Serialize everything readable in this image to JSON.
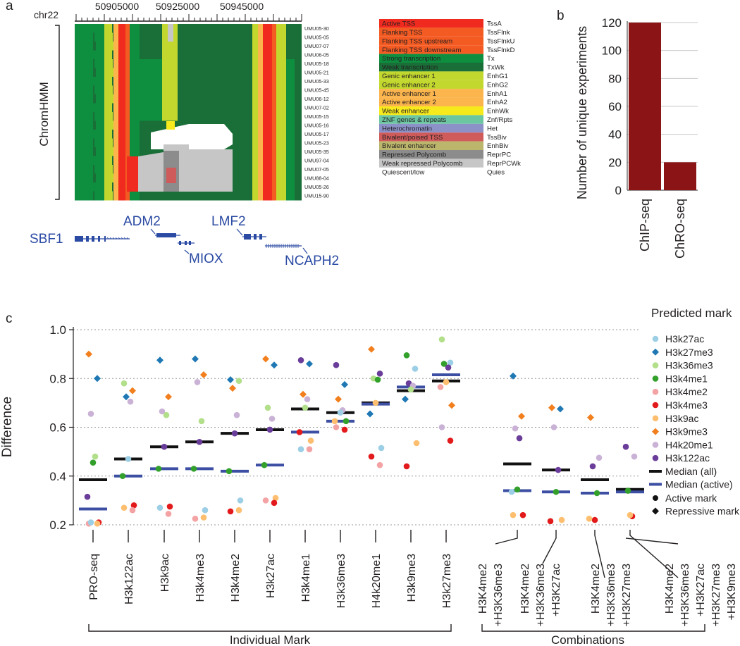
{
  "panel_labels": {
    "a": "a",
    "b": "b",
    "c": "c"
  },
  "panel_a": {
    "chrom_label": "chr22",
    "ticks": [
      "50905000",
      "50925000",
      "50945000"
    ],
    "ylabel": "ChromHMM",
    "samples": [
      "UMU05-30",
      "UMU05-05",
      "UMU07-07",
      "UMU06-05",
      "UMU05-18",
      "UMU05-21",
      "UMU05-33",
      "UMU05-45",
      "UMU06-12",
      "UMU07-02",
      "UMU05-15",
      "UMU05-16",
      "UMU05-17",
      "UMU05-23",
      "UMU05-35",
      "UMU97-04",
      "UMU07-05",
      "UMU88-04",
      "UMU05-26",
      "UMU15-90"
    ],
    "legend": [
      {
        "name": "Active TSS",
        "code": "TssA",
        "color": "#f02a1e"
      },
      {
        "name": "Flanking TSS",
        "code": "TssFlnk",
        "color": "#f45b23"
      },
      {
        "name": "Flanking TSS upstream",
        "code": "TssFlnkU",
        "color": "#f45b23"
      },
      {
        "name": "Flanking TSS downstream",
        "code": "TssFlnkD",
        "color": "#f45b23"
      },
      {
        "name": "Strong transcription",
        "code": "Tx",
        "color": "#0e8e3f"
      },
      {
        "name": "Weak transcription",
        "code": "TxWk",
        "color": "#1a6e37"
      },
      {
        "name": "Genic enhancer 1",
        "code": "EnhG1",
        "color": "#c3d82e"
      },
      {
        "name": "Genic enhancer 2",
        "code": "EnhG2",
        "color": "#c3d82e"
      },
      {
        "name": "Active enhancer 1",
        "code": "EnhA1",
        "color": "#fbb54c"
      },
      {
        "name": "Active enhancer 2",
        "code": "EnhA2",
        "color": "#fbb54c"
      },
      {
        "name": "Weak enhancer",
        "code": "EnhWk",
        "color": "#f6ea1d"
      },
      {
        "name": "ZNF genes & repeats",
        "code": "Znf/Rpts",
        "color": "#6cc6a2"
      },
      {
        "name": "Heterochromatin",
        "code": "Het",
        "color": "#8c91c8"
      },
      {
        "name": "Bivalent/poised TSS",
        "code": "TssBiv",
        "color": "#cf5b5b"
      },
      {
        "name": "Bivalent enhancer",
        "code": "EnhBiv",
        "color": "#bcb66c"
      },
      {
        "name": "Repressed Polycomb",
        "code": "ReprPC",
        "color": "#8c8c8c"
      },
      {
        "name": "Weak repressed Polycomb",
        "code": "ReprPCWk",
        "color": "#c6c6c6"
      },
      {
        "name": "Quiescent/low",
        "code": "Quies",
        "color": "#ffffff"
      }
    ],
    "genes": [
      "SBF1",
      "ADM2",
      "MIOX",
      "LMF2",
      "NCAPH2"
    ]
  },
  "chart_data": [
    {
      "type": "bar",
      "panel": "b",
      "categories": [
        "ChIP-seq",
        "ChRO-seq"
      ],
      "values": [
        120,
        20
      ],
      "ylabel": "Number of unique experiments",
      "ylim": [
        0,
        120
      ],
      "yticks": [
        "0",
        "20",
        "40",
        "60",
        "80",
        "100",
        "120"
      ],
      "color": "#8b1516",
      "grid": true
    },
    {
      "type": "scatter",
      "panel": "c",
      "ylabel": "Difference",
      "ylim": [
        0.2,
        1.0
      ],
      "yticks": [
        "0.2",
        "0.4",
        "0.6",
        "0.8",
        "1.0"
      ],
      "grid": true,
      "legend_title": "Predicted  mark",
      "legend_position": "right",
      "categories": [
        "PRO-seq",
        "H3k122ac",
        "H3k9ac",
        "H3k4me3",
        "H3k4me2",
        "H3k27ac",
        "H3k4me1",
        "H3k36me3",
        "H4k20me1",
        "H3k9me3",
        "H3k27me3",
        "H3K4me2\n+H3K36me3",
        "H3K4me2\n+H3K36me3\n+H3K27ac",
        "H3K4me2\n+H3K36me3\n+H3K27me3",
        "H3K4me2\n+H3K36me3\n+H3K27ac\n+H3K27me3\n+H3K9me3"
      ],
      "group_labels": [
        "Individual Mark",
        "Combinations"
      ],
      "marks": [
        {
          "name": "H3k27ac",
          "color": "#9ccfe5",
          "shape": "circle"
        },
        {
          "name": "H3k27me3",
          "color": "#1f78b4",
          "shape": "diamond"
        },
        {
          "name": "H3k36me3",
          "color": "#b2df8a",
          "shape": "circle"
        },
        {
          "name": "H3k4me1",
          "color": "#33a02c",
          "shape": "circle"
        },
        {
          "name": "H3k4me2",
          "color": "#f4a3a5",
          "shape": "circle"
        },
        {
          "name": "H3k4me3",
          "color": "#e31a1c",
          "shape": "circle"
        },
        {
          "name": "H3k9ac",
          "color": "#fdbf6f",
          "shape": "circle"
        },
        {
          "name": "H3k9me3",
          "color": "#f27f1e",
          "shape": "diamond"
        },
        {
          "name": "H4k20me1",
          "color": "#cab2d6",
          "shape": "circle"
        },
        {
          "name": "H3k122ac",
          "color": "#6a3d9a",
          "shape": "circle"
        }
      ],
      "median_legend": [
        {
          "name": "Median (all)",
          "color": "#111111"
        },
        {
          "name": "Median (active)",
          "color": "#3c4fa3"
        }
      ],
      "shape_legend": [
        {
          "name": "Active mark",
          "shape": "circle"
        },
        {
          "name": "Repressive mark",
          "shape": "diamond"
        }
      ],
      "median_all": [
        0.385,
        0.47,
        0.52,
        0.54,
        0.575,
        0.59,
        0.675,
        0.66,
        0.7,
        0.75,
        0.79,
        0.45,
        0.425,
        0.385,
        0.345
      ],
      "median_active": [
        0.265,
        0.4,
        0.43,
        0.43,
        0.42,
        0.445,
        0.58,
        0.625,
        0.695,
        0.765,
        0.815,
        0.34,
        0.335,
        0.33,
        0.335
      ],
      "points": [
        {
          "cat": 0,
          "mark": "H3k9me3",
          "y": 0.9
        },
        {
          "cat": 0,
          "mark": "H3k27me3",
          "y": 0.8
        },
        {
          "cat": 0,
          "mark": "H4k20me1",
          "y": 0.655
        },
        {
          "cat": 0,
          "mark": "H3k36me3",
          "y": 0.48
        },
        {
          "cat": 0,
          "mark": "H3k4me1",
          "y": 0.455
        },
        {
          "cat": 0,
          "mark": "H3k122ac",
          "y": 0.315
        },
        {
          "cat": 0,
          "mark": "H3k4me3",
          "y": 0.21
        },
        {
          "cat": 0,
          "mark": "H3k4me2",
          "y": 0.205
        },
        {
          "cat": 0,
          "mark": "H3k9ac",
          "y": 0.205
        },
        {
          "cat": 0,
          "mark": "H3k27ac",
          "y": 0.21
        },
        {
          "cat": 1,
          "mark": "H3k36me3",
          "y": 0.78
        },
        {
          "cat": 1,
          "mark": "H3k9me3",
          "y": 0.75
        },
        {
          "cat": 1,
          "mark": "H3k27me3",
          "y": 0.725
        },
        {
          "cat": 1,
          "mark": "H4k20me1",
          "y": 0.705
        },
        {
          "cat": 1,
          "mark": "H3k27ac",
          "y": 0.47
        },
        {
          "cat": 1,
          "mark": "H3k4me1",
          "y": 0.4
        },
        {
          "cat": 1,
          "mark": "H3k4me3",
          "y": 0.28
        },
        {
          "cat": 1,
          "mark": "H3k9ac",
          "y": 0.27
        },
        {
          "cat": 1,
          "mark": "H3k4me2",
          "y": 0.26
        },
        {
          "cat": 2,
          "mark": "H3k27me3",
          "y": 0.875
        },
        {
          "cat": 2,
          "mark": "H3k9me3",
          "y": 0.725
        },
        {
          "cat": 2,
          "mark": "H4k20me1",
          "y": 0.665
        },
        {
          "cat": 2,
          "mark": "H3k36me3",
          "y": 0.65
        },
        {
          "cat": 2,
          "mark": "H3k122ac",
          "y": 0.52
        },
        {
          "cat": 2,
          "mark": "H3k4me1",
          "y": 0.43
        },
        {
          "cat": 2,
          "mark": "H3k4me3",
          "y": 0.275
        },
        {
          "cat": 2,
          "mark": "H3k27ac",
          "y": 0.27
        },
        {
          "cat": 2,
          "mark": "H3k4me2",
          "y": 0.245
        },
        {
          "cat": 3,
          "mark": "H3k27me3",
          "y": 0.88
        },
        {
          "cat": 3,
          "mark": "H3k9me3",
          "y": 0.815
        },
        {
          "cat": 3,
          "mark": "H4k20me1",
          "y": 0.785
        },
        {
          "cat": 3,
          "mark": "H3k36me3",
          "y": 0.625
        },
        {
          "cat": 3,
          "mark": "H3k122ac",
          "y": 0.54
        },
        {
          "cat": 3,
          "mark": "H3k4me1",
          "y": 0.43
        },
        {
          "cat": 3,
          "mark": "H3k27ac",
          "y": 0.26
        },
        {
          "cat": 3,
          "mark": "H3k4me2",
          "y": 0.225
        },
        {
          "cat": 3,
          "mark": "H3k9ac",
          "y": 0.23
        },
        {
          "cat": 4,
          "mark": "H3k27me3",
          "y": 0.795
        },
        {
          "cat": 4,
          "mark": "H3k36me3",
          "y": 0.79
        },
        {
          "cat": 4,
          "mark": "H3k9me3",
          "y": 0.76
        },
        {
          "cat": 4,
          "mark": "H4k20me1",
          "y": 0.65
        },
        {
          "cat": 4,
          "mark": "H3k122ac",
          "y": 0.575
        },
        {
          "cat": 4,
          "mark": "H3k4me1",
          "y": 0.42
        },
        {
          "cat": 4,
          "mark": "H3k27ac",
          "y": 0.3
        },
        {
          "cat": 4,
          "mark": "H3k4me3",
          "y": 0.255
        },
        {
          "cat": 4,
          "mark": "H3k9ac",
          "y": 0.26
        },
        {
          "cat": 5,
          "mark": "H3k9me3",
          "y": 0.88
        },
        {
          "cat": 5,
          "mark": "H3k27me3",
          "y": 0.855
        },
        {
          "cat": 5,
          "mark": "H3k36me3",
          "y": 0.68
        },
        {
          "cat": 5,
          "mark": "H4k20me1",
          "y": 0.635
        },
        {
          "cat": 5,
          "mark": "H3k122ac",
          "y": 0.59
        },
        {
          "cat": 5,
          "mark": "H3k4me1",
          "y": 0.445
        },
        {
          "cat": 5,
          "mark": "H3k9ac",
          "y": 0.31
        },
        {
          "cat": 5,
          "mark": "H3k4me2",
          "y": 0.3
        },
        {
          "cat": 5,
          "mark": "H3k4me3",
          "y": 0.29
        },
        {
          "cat": 6,
          "mark": "H3k122ac",
          "y": 0.875
        },
        {
          "cat": 6,
          "mark": "H3k27me3",
          "y": 0.86
        },
        {
          "cat": 6,
          "mark": "H3k9me3",
          "y": 0.735
        },
        {
          "cat": 6,
          "mark": "H4k20me1",
          "y": 0.715
        },
        {
          "cat": 6,
          "mark": "H3k36me3",
          "y": 0.68
        },
        {
          "cat": 6,
          "mark": "H3k4me3",
          "y": 0.58
        },
        {
          "cat": 6,
          "mark": "H3k9ac",
          "y": 0.545
        },
        {
          "cat": 6,
          "mark": "H3k27ac",
          "y": 0.51
        },
        {
          "cat": 6,
          "mark": "H3k4me2",
          "y": 0.51
        },
        {
          "cat": 7,
          "mark": "H3k122ac",
          "y": 0.855
        },
        {
          "cat": 7,
          "mark": "H3k27me3",
          "y": 0.775
        },
        {
          "cat": 7,
          "mark": "H3k9me3",
          "y": 0.715
        },
        {
          "cat": 7,
          "mark": "H4k20me1",
          "y": 0.67
        },
        {
          "cat": 7,
          "mark": "H3k27ac",
          "y": 0.66
        },
        {
          "cat": 7,
          "mark": "H3k9ac",
          "y": 0.625
        },
        {
          "cat": 7,
          "mark": "H3k4me1",
          "y": 0.625
        },
        {
          "cat": 7,
          "mark": "H3k4me2",
          "y": 0.6
        },
        {
          "cat": 7,
          "mark": "H3k4me3",
          "y": 0.59
        },
        {
          "cat": 8,
          "mark": "H3k9me3",
          "y": 0.92
        },
        {
          "cat": 8,
          "mark": "H3k122ac",
          "y": 0.82
        },
        {
          "cat": 8,
          "mark": "H3k36me3",
          "y": 0.8
        },
        {
          "cat": 8,
          "mark": "H3k4me1",
          "y": 0.795
        },
        {
          "cat": 8,
          "mark": "H3k9ac",
          "y": 0.7
        },
        {
          "cat": 8,
          "mark": "H3k27me3",
          "y": 0.655
        },
        {
          "cat": 8,
          "mark": "H3k27ac",
          "y": 0.515
        },
        {
          "cat": 8,
          "mark": "H3k4me3",
          "y": 0.48
        },
        {
          "cat": 8,
          "mark": "H3k4me2",
          "y": 0.445
        },
        {
          "cat": 9,
          "mark": "H3k4me1",
          "y": 0.895
        },
        {
          "cat": 9,
          "mark": "H3k27ac",
          "y": 0.84
        },
        {
          "cat": 9,
          "mark": "H3k122ac",
          "y": 0.78
        },
        {
          "cat": 9,
          "mark": "H4k20me1",
          "y": 0.77
        },
        {
          "cat": 9,
          "mark": "H3k36me3",
          "y": 0.755
        },
        {
          "cat": 9,
          "mark": "H3k27me3",
          "y": 0.715
        },
        {
          "cat": 9,
          "mark": "H3k9ac",
          "y": 0.535
        },
        {
          "cat": 9,
          "mark": "H3k4me3",
          "y": 0.44
        },
        {
          "cat": 10,
          "mark": "H3k36me3",
          "y": 0.96
        },
        {
          "cat": 10,
          "mark": "H3k27ac",
          "y": 0.865
        },
        {
          "cat": 10,
          "mark": "H3k4me1",
          "y": 0.86
        },
        {
          "cat": 10,
          "mark": "H3k122ac",
          "y": 0.845
        },
        {
          "cat": 10,
          "mark": "H3k9ac",
          "y": 0.785
        },
        {
          "cat": 10,
          "mark": "H3k4me2",
          "y": 0.765
        },
        {
          "cat": 10,
          "mark": "H3k9me3",
          "y": 0.69
        },
        {
          "cat": 10,
          "mark": "H4k20me1",
          "y": 0.6
        },
        {
          "cat": 10,
          "mark": "H3k4me3",
          "y": 0.545
        },
        {
          "cat": 11,
          "mark": "H3k27me3",
          "y": 0.81
        },
        {
          "cat": 11,
          "mark": "H3k9me3",
          "y": 0.645
        },
        {
          "cat": 11,
          "mark": "H4k20me1",
          "y": 0.595
        },
        {
          "cat": 11,
          "mark": "H3k122ac",
          "y": 0.555
        },
        {
          "cat": 11,
          "mark": "H3k4me1",
          "y": 0.345
        },
        {
          "cat": 11,
          "mark": "H3k27ac",
          "y": 0.335
        },
        {
          "cat": 11,
          "mark": "H3k4me3",
          "y": 0.24
        },
        {
          "cat": 11,
          "mark": "H3k9ac",
          "y": 0.24
        },
        {
          "cat": 12,
          "mark": "H3k9me3",
          "y": 0.68
        },
        {
          "cat": 12,
          "mark": "H3k27me3",
          "y": 0.675
        },
        {
          "cat": 12,
          "mark": "H4k20me1",
          "y": 0.6
        },
        {
          "cat": 12,
          "mark": "H3k122ac",
          "y": 0.425
        },
        {
          "cat": 12,
          "mark": "H3k4me1",
          "y": 0.335
        },
        {
          "cat": 12,
          "mark": "H3k4me3",
          "y": 0.215
        },
        {
          "cat": 12,
          "mark": "H3k9ac",
          "y": 0.22
        },
        {
          "cat": 13,
          "mark": "H3k9me3",
          "y": 0.64
        },
        {
          "cat": 13,
          "mark": "H4k20me1",
          "y": 0.475
        },
        {
          "cat": 13,
          "mark": "H3k122ac",
          "y": 0.44
        },
        {
          "cat": 13,
          "mark": "H3k4me1",
          "y": 0.33
        },
        {
          "cat": 13,
          "mark": "H3k4me3",
          "y": 0.22
        },
        {
          "cat": 13,
          "mark": "H3k9ac",
          "y": 0.225
        },
        {
          "cat": 14,
          "mark": "H3k122ac",
          "y": 0.52
        },
        {
          "cat": 14,
          "mark": "H4k20me1",
          "y": 0.48
        },
        {
          "cat": 14,
          "mark": "H3k4me1",
          "y": 0.34
        },
        {
          "cat": 14,
          "mark": "H3k4me3",
          "y": 0.235
        },
        {
          "cat": 14,
          "mark": "H3k9ac",
          "y": 0.24
        }
      ]
    }
  ]
}
